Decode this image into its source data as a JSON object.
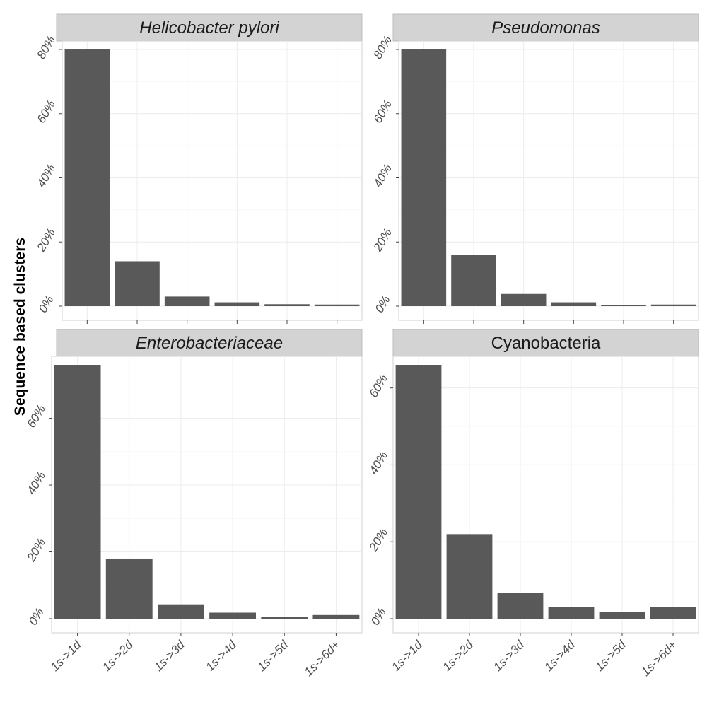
{
  "chart_data": {
    "type": "bar",
    "ylabel": "Sequence based clusters",
    "categories": [
      "1s->1d",
      "1s->2d",
      "1s->3d",
      "1s->4d",
      "1s->5d",
      "1s->6d+"
    ],
    "panels": [
      {
        "title": "Helicobacter pylori",
        "title_italic": true,
        "values": [
          80,
          14,
          3,
          1.2,
          0.6,
          0.5
        ],
        "ylim": [
          0,
          80
        ],
        "yticks": [
          0,
          20,
          40,
          60,
          80
        ],
        "ytick_labels": [
          "0%",
          "20%",
          "40%",
          "60%",
          "80%"
        ]
      },
      {
        "title": "Pseudomonas",
        "title_italic": true,
        "values": [
          80,
          16,
          3.8,
          1.2,
          0.4,
          0.5
        ],
        "ylim": [
          0,
          80
        ],
        "yticks": [
          0,
          20,
          40,
          60,
          80
        ],
        "ytick_labels": [
          "0%",
          "20%",
          "40%",
          "60%",
          "80%"
        ]
      },
      {
        "title": "Enterobacteriaceae",
        "title_italic": true,
        "values": [
          76,
          18,
          4.3,
          1.8,
          0.5,
          1.1
        ],
        "ylim": [
          0,
          76
        ],
        "yticks": [
          0,
          20,
          40,
          60
        ],
        "ytick_labels": [
          "0%",
          "20%",
          "40%",
          "60%"
        ]
      },
      {
        "title": "Cyanobacteria",
        "title_italic": false,
        "values": [
          66,
          22,
          6.8,
          3.1,
          1.7,
          3.0
        ],
        "ylim": [
          0,
          66
        ],
        "yticks": [
          0,
          20,
          40,
          60
        ],
        "ytick_labels": [
          "0%",
          "20%",
          "40%",
          "60%"
        ]
      }
    ],
    "grid": true,
    "legend": "none"
  }
}
